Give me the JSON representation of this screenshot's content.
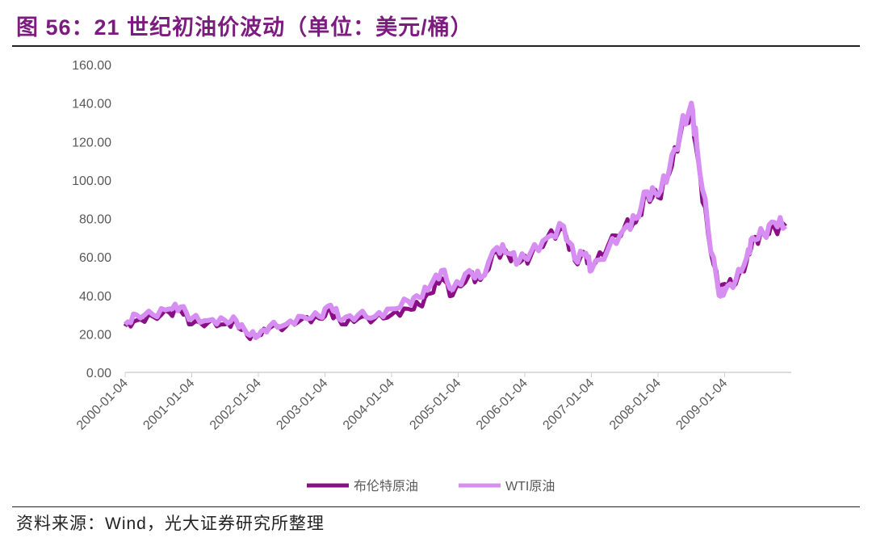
{
  "title": "图 56：21 世纪初油价波动（单位：美元/桶）",
  "source": "资料来源：Wind，光大证券研究所整理",
  "chart_data": {
    "type": "line",
    "title": "图 56：21 世纪初油价波动（单位：美元/桶）",
    "xlabel": "",
    "ylabel": "",
    "ylim": [
      0,
      160
    ],
    "yticks": [
      "0.00",
      "20.00",
      "40.00",
      "60.00",
      "80.00",
      "100.00",
      "120.00",
      "140.00",
      "160.00"
    ],
    "xticks": [
      "2000-01-04",
      "2001-01-04",
      "2002-01-04",
      "2003-01-04",
      "2004-01-04",
      "2005-01-04",
      "2006-01-04",
      "2007-01-04",
      "2008-01-04",
      "2009-01-04"
    ],
    "grid": false,
    "legend": "bottom",
    "x": [
      "2000-01",
      "2000-03",
      "2000-06",
      "2000-09",
      "2000-11",
      "2001-01",
      "2001-04",
      "2001-07",
      "2001-09",
      "2001-11",
      "2002-01",
      "2002-03",
      "2002-06",
      "2002-09",
      "2002-12",
      "2003-02",
      "2003-04",
      "2003-07",
      "2003-10",
      "2004-01",
      "2004-04",
      "2004-06",
      "2004-08",
      "2004-10",
      "2004-12",
      "2005-03",
      "2005-05",
      "2005-08",
      "2005-10",
      "2005-12",
      "2006-02",
      "2006-05",
      "2006-08",
      "2006-10",
      "2006-12",
      "2007-01",
      "2007-04",
      "2007-07",
      "2007-09",
      "2007-11",
      "2008-01",
      "2008-03",
      "2008-05",
      "2008-07",
      "2008-08",
      "2008-10",
      "2008-12",
      "2009-01",
      "2009-03",
      "2009-05",
      "2009-06",
      "2009-08",
      "2009-10",
      "2009-12"
    ],
    "series": [
      {
        "name": "布伦特原油",
        "color": "#8a0f86",
        "values": [
          24,
          27,
          29,
          31,
          32,
          25,
          26,
          25,
          26,
          19,
          19,
          23,
          24,
          28,
          28,
          32,
          25,
          28,
          28,
          30,
          33,
          35,
          41,
          49,
          40,
          51,
          48,
          63,
          61,
          57,
          60,
          70,
          75,
          58,
          61,
          54,
          66,
          76,
          78,
          92,
          91,
          103,
          123,
          138,
          114,
          72,
          42,
          46,
          46,
          58,
          68,
          72,
          75,
          76
        ]
      },
      {
        "name": "WTI原油",
        "color": "#d68ef2",
        "values": [
          25,
          30,
          30,
          33,
          34,
          28,
          27,
          27,
          27,
          20,
          19,
          24,
          25,
          29,
          29,
          35,
          27,
          30,
          29,
          33,
          37,
          39,
          45,
          53,
          43,
          53,
          49,
          65,
          62,
          58,
          62,
          70,
          76,
          59,
          62,
          53,
          64,
          75,
          80,
          94,
          92,
          105,
          125,
          140,
          118,
          75,
          40,
          42,
          48,
          60,
          70,
          72,
          78,
          76
        ]
      }
    ]
  }
}
